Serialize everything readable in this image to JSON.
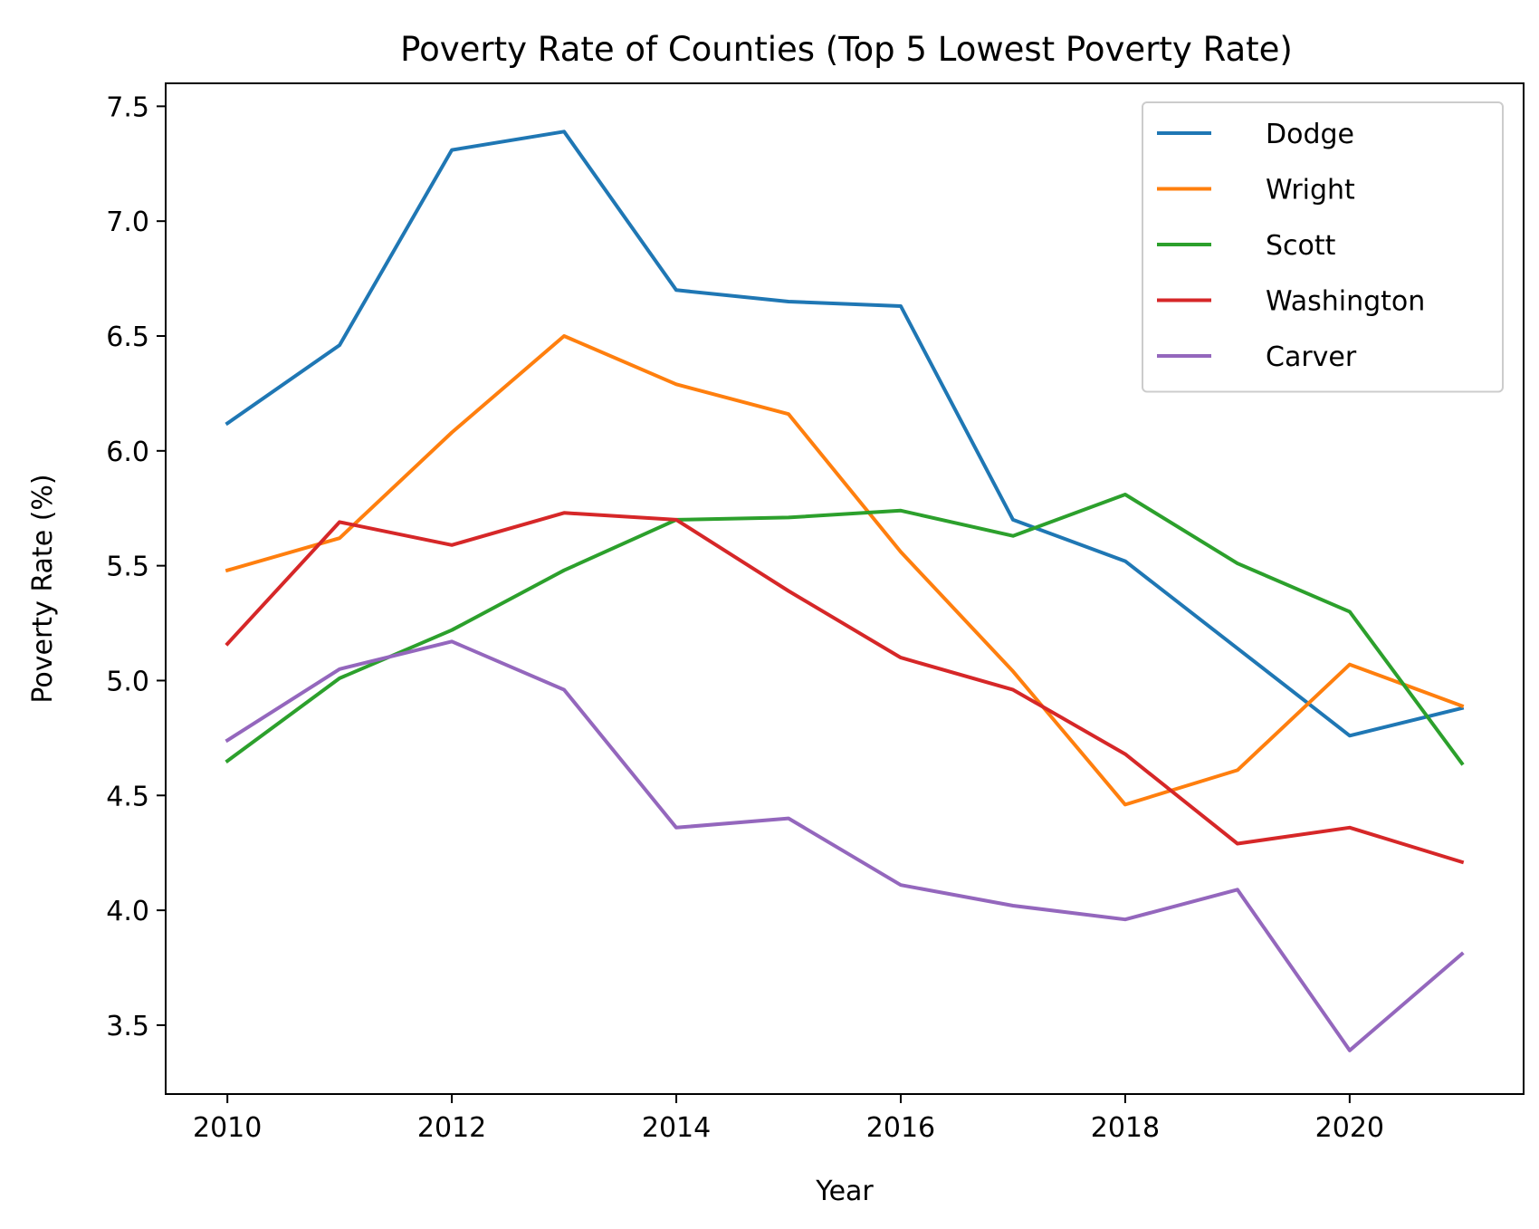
{
  "chart_data": {
    "type": "line",
    "title": "Poverty Rate of Counties (Top 5 Lowest Poverty Rate)",
    "xlabel": "Year",
    "ylabel": "Poverty Rate (%)",
    "x": [
      2010,
      2011,
      2012,
      2013,
      2014,
      2015,
      2016,
      2017,
      2018,
      2019,
      2020,
      2021
    ],
    "xlim": [
      2009.45,
      2021.55
    ],
    "ylim": [
      3.2,
      7.6
    ],
    "xticks": [
      2010,
      2012,
      2014,
      2016,
      2018,
      2020
    ],
    "yticks": [
      3.5,
      4.0,
      4.5,
      5.0,
      5.5,
      6.0,
      6.5,
      7.0,
      7.5
    ],
    "xtick_labels": [
      "2010",
      "2012",
      "2014",
      "2016",
      "2018",
      "2020"
    ],
    "ytick_labels": [
      "3.5",
      "4.0",
      "4.5",
      "5.0",
      "5.5",
      "6.0",
      "6.5",
      "7.0",
      "7.5"
    ],
    "grid": false,
    "legend_position": "top-right",
    "series": [
      {
        "name": "Dodge",
        "color": "#1f77b4",
        "values": [
          6.12,
          6.46,
          7.31,
          7.39,
          6.7,
          6.65,
          6.63,
          5.7,
          5.52,
          5.14,
          4.76,
          4.88
        ]
      },
      {
        "name": "Wright",
        "color": "#ff7f0e",
        "values": [
          5.48,
          5.62,
          6.08,
          6.5,
          6.29,
          6.16,
          5.56,
          5.04,
          4.46,
          4.61,
          5.07,
          4.89
        ]
      },
      {
        "name": "Scott",
        "color": "#2ca02c",
        "values": [
          4.65,
          5.01,
          5.22,
          5.48,
          5.7,
          5.71,
          5.74,
          5.63,
          5.81,
          5.51,
          5.3,
          4.64
        ]
      },
      {
        "name": "Washington",
        "color": "#d62728",
        "values": [
          5.16,
          5.69,
          5.59,
          5.73,
          5.7,
          5.39,
          5.1,
          4.96,
          4.68,
          4.29,
          4.36,
          4.21
        ]
      },
      {
        "name": "Carver",
        "color": "#9467bd",
        "values": [
          4.74,
          5.05,
          5.17,
          4.96,
          4.36,
          4.4,
          4.11,
          4.02,
          3.96,
          4.09,
          3.39,
          3.81
        ]
      }
    ]
  }
}
